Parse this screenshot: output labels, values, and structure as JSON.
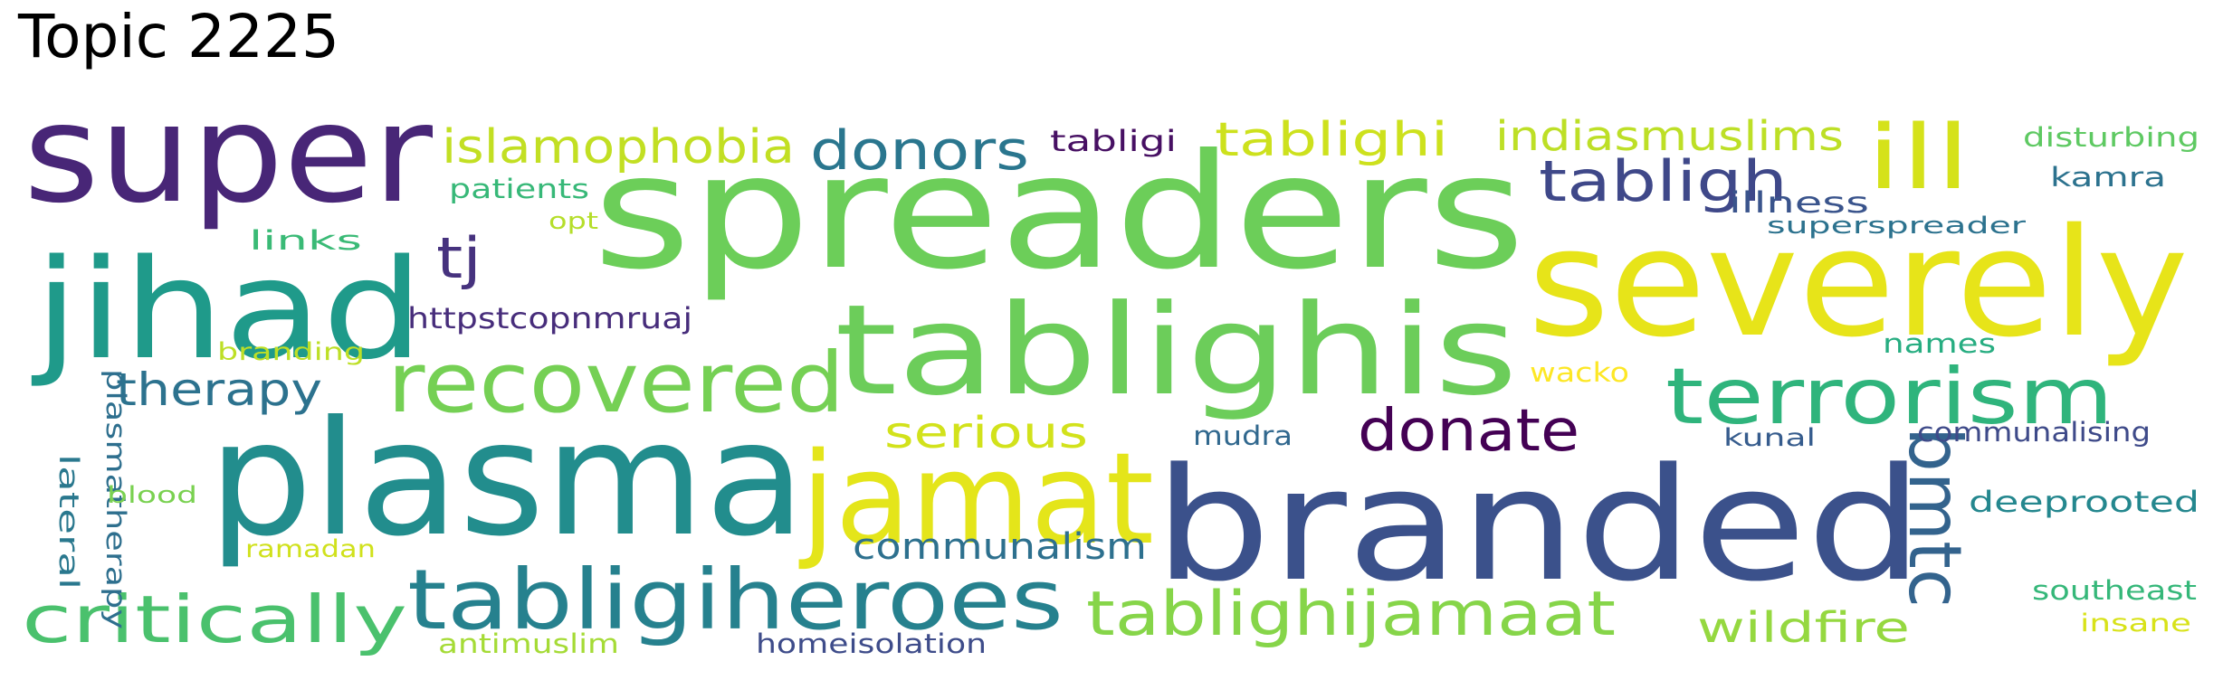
{
  "title": "Topic 2225",
  "words": [
    {
      "text": "super",
      "color": "#482677"
    },
    {
      "text": "spreaders",
      "color": "#6cce59"
    },
    {
      "text": "severely",
      "color": "#e7e419"
    },
    {
      "text": "jihad",
      "color": "#1f9a8a"
    },
    {
      "text": "tablighis",
      "color": "#6ccd5a"
    },
    {
      "text": "plasma",
      "color": "#228d8d"
    },
    {
      "text": "branded",
      "color": "#3b518b"
    },
    {
      "text": "jamat",
      "color": "#e4e51a"
    },
    {
      "text": "recovered",
      "color": "#75d054"
    },
    {
      "text": "terrorism",
      "color": "#2fb47c"
    },
    {
      "text": "tabligiheroes",
      "color": "#26818e"
    },
    {
      "text": "ill",
      "color": "#d5e21a"
    },
    {
      "text": "tablighijamaat",
      "color": "#86d549"
    },
    {
      "text": "critically",
      "color": "#4ac16d"
    },
    {
      "text": "donate",
      "color": "#440154"
    },
    {
      "text": "bmtc",
      "color": "#33638d"
    },
    {
      "text": "tabligh",
      "color": "#3f4889"
    },
    {
      "text": "donors",
      "color": "#2a768e"
    },
    {
      "text": "islamophobia",
      "color": "#c2df23"
    },
    {
      "text": "tablighi",
      "color": "#cde11d"
    },
    {
      "text": "indiasmuslims",
      "color": "#bddf26"
    },
    {
      "text": "therapy",
      "color": "#2c728e"
    },
    {
      "text": "tj",
      "color": "#46327e"
    },
    {
      "text": "serious",
      "color": "#d2e21b"
    },
    {
      "text": "communalism",
      "color": "#2d708e"
    },
    {
      "text": "wildfire",
      "color": "#95d840"
    },
    {
      "text": "httpstcopnmruaj",
      "color": "#472d7b"
    },
    {
      "text": "tabligi",
      "color": "#471063"
    },
    {
      "text": "patients",
      "color": "#37b878"
    },
    {
      "text": "opt",
      "color": "#b5de2b"
    },
    {
      "text": "links",
      "color": "#3aba76"
    },
    {
      "text": "illness",
      "color": "#3a548c"
    },
    {
      "text": "superspreader",
      "color": "#2c728e"
    },
    {
      "text": "disturbing",
      "color": "#5ec962"
    },
    {
      "text": "kamra",
      "color": "#2c728e"
    },
    {
      "text": "branding",
      "color": "#bddf26"
    },
    {
      "text": "names",
      "color": "#27ad81"
    },
    {
      "text": "wacko",
      "color": "#fde725"
    },
    {
      "text": "plasmatherapy",
      "color": "#2e6f8e"
    },
    {
      "text": "lateral",
      "color": "#2a788e"
    },
    {
      "text": "blood",
      "color": "#7ad151"
    },
    {
      "text": "ramadan",
      "color": "#d0e11c"
    },
    {
      "text": "mudra",
      "color": "#31688e"
    },
    {
      "text": "kunal",
      "color": "#365c8d"
    },
    {
      "text": "communalising",
      "color": "#3e4a89"
    },
    {
      "text": "deeprooted",
      "color": "#24878e"
    },
    {
      "text": "southeast",
      "color": "#35b779"
    },
    {
      "text": "insane",
      "color": "#d8e219"
    },
    {
      "text": "antimuslim",
      "color": "#a5db36"
    },
    {
      "text": "homeisolation",
      "color": "#3e4c8a"
    }
  ]
}
